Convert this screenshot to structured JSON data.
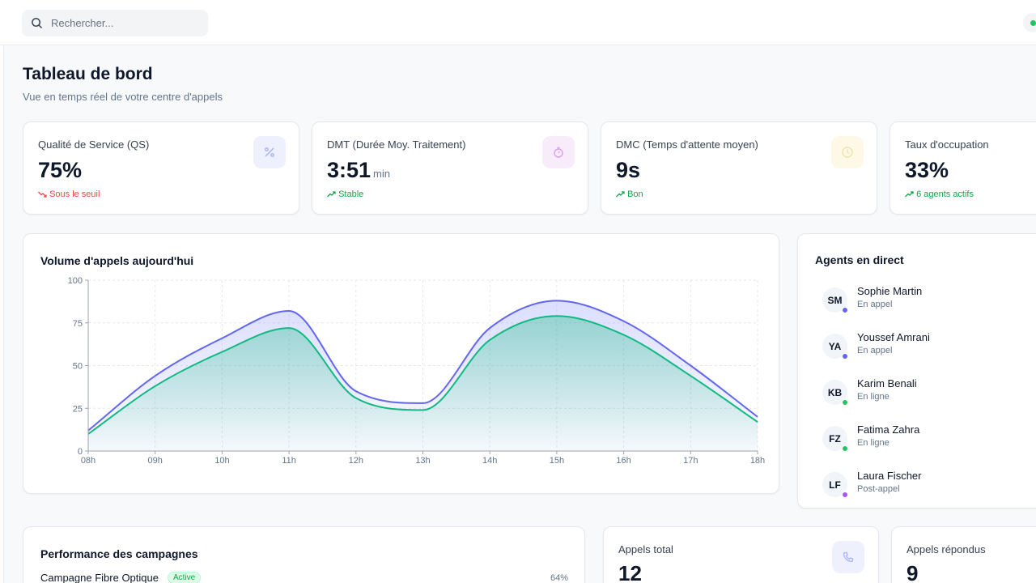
{
  "search": {
    "placeholder": "Rechercher..."
  },
  "header": {
    "title": "Tableau de bord",
    "subtitle": "Vue en temps réel de votre centre d'appels"
  },
  "kpis": [
    {
      "label": "Qualité de Service (QS)",
      "value": "75%",
      "unit": "",
      "trend": "Sous le seuil",
      "trend_dir": "down",
      "icon": "percent-icon",
      "icon_bg": "#eef0fd",
      "icon_color": "#818cf8"
    },
    {
      "label": "DMT (Durée Moy. Traitement)",
      "value": "3:51",
      "unit": "min",
      "trend": "Stable",
      "trend_dir": "up",
      "icon": "stopwatch-icon",
      "icon_bg": "#f8ecfb",
      "icon_color": "#d8a0ea"
    },
    {
      "label": "DMC (Temps d'attente moyen)",
      "value": "9s",
      "unit": "",
      "trend": "Bon",
      "trend_dir": "up",
      "icon": "clock-icon",
      "icon_bg": "#fdf9e6",
      "icon_color": "#efe3a8"
    },
    {
      "label": "Taux d'occupation",
      "value": "33%",
      "unit": "",
      "trend": "6 agents actifs",
      "trend_dir": "up",
      "icon": "",
      "icon_bg": "",
      "icon_color": ""
    }
  ],
  "volume_chart": {
    "title": "Volume d'appels aujourd'hui"
  },
  "chart_data": {
    "type": "area",
    "title": "Volume d'appels aujourd'hui",
    "categories": [
      "08h",
      "09h",
      "10h",
      "11h",
      "12h",
      "13h",
      "14h",
      "15h",
      "16h",
      "17h",
      "18h"
    ],
    "ylim": [
      0,
      100
    ],
    "yticks": [
      0,
      25,
      50,
      75,
      100
    ],
    "grid": true,
    "legend": "none",
    "series": [
      {
        "values": [
          12,
          44,
          66,
          82,
          35,
          28,
          72,
          88,
          76,
          50,
          20
        ],
        "color": "#6366f1"
      },
      {
        "values": [
          10,
          38,
          58,
          72,
          31,
          24,
          65,
          79,
          68,
          44,
          17
        ],
        "color": "#10b981"
      }
    ]
  },
  "agents": {
    "title": "Agents en direct",
    "items": [
      {
        "initials": "SM",
        "name": "Sophie Martin",
        "status": "En appel",
        "dot": "#6366f1"
      },
      {
        "initials": "YA",
        "name": "Youssef Amrani",
        "status": "En appel",
        "dot": "#6366f1"
      },
      {
        "initials": "KB",
        "name": "Karim Benali",
        "status": "En ligne",
        "dot": "#22c55e"
      },
      {
        "initials": "FZ",
        "name": "Fatima Zahra",
        "status": "En ligne",
        "dot": "#22c55e"
      },
      {
        "initials": "LF",
        "name": "Laura Fischer",
        "status": "Post-appel",
        "dot": "#a855f7"
      }
    ]
  },
  "campaigns": {
    "title": "Performance des campagnes",
    "items": [
      {
        "name": "Campagne Fibre Optique",
        "badge": "Active",
        "percent": "64%"
      }
    ]
  },
  "totals": [
    {
      "label": "Appels total",
      "value": "12",
      "icon": "phone-icon"
    },
    {
      "label": "Appels répondus",
      "value": "9",
      "icon": ""
    }
  ],
  "colors": {
    "accent": "#6366f1",
    "success": "#16a34a",
    "danger": "#ef4444"
  }
}
